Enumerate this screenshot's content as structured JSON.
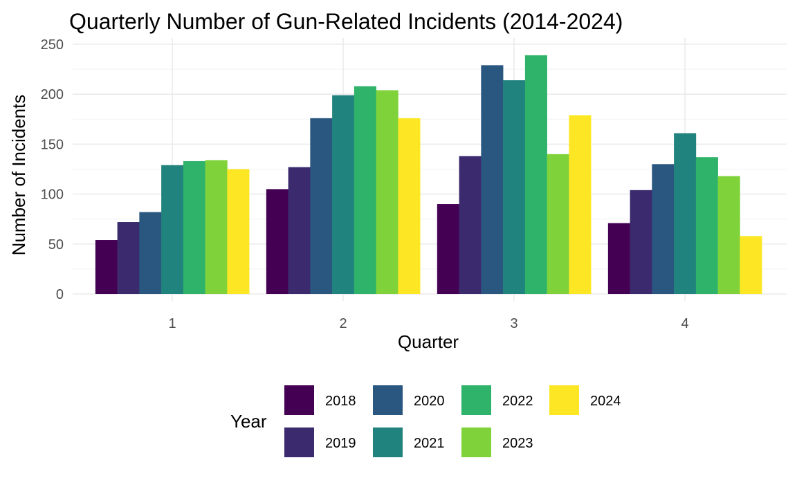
{
  "chart_data": {
    "type": "bar",
    "title": "Quarterly Number of Gun-Related Incidents (2014-2024)",
    "xlabel": "Quarter",
    "ylabel": "Number of Incidents",
    "categories": [
      "1",
      "2",
      "3",
      "4"
    ],
    "ylim": [
      0,
      250
    ],
    "yticks": [
      0,
      50,
      100,
      150,
      200,
      250
    ],
    "grid": true,
    "legend": {
      "title": "Year",
      "position": "bottom"
    },
    "series": [
      {
        "name": "2018",
        "color": "#440154",
        "values": [
          54,
          105,
          90,
          71
        ]
      },
      {
        "name": "2019",
        "color": "#3B2A6E",
        "values": [
          72,
          127,
          138,
          104
        ]
      },
      {
        "name": "2020",
        "color": "#2A5780",
        "values": [
          82,
          176,
          229,
          130
        ]
      },
      {
        "name": "2021",
        "color": "#21837D",
        "values": [
          129,
          199,
          214,
          161
        ]
      },
      {
        "name": "2022",
        "color": "#2FB36A",
        "values": [
          133,
          208,
          239,
          137
        ]
      },
      {
        "name": "2023",
        "color": "#7FD23A",
        "values": [
          134,
          204,
          140,
          118
        ]
      },
      {
        "name": "2024",
        "color": "#FDE725",
        "values": [
          125,
          176,
          179,
          58
        ]
      }
    ]
  }
}
